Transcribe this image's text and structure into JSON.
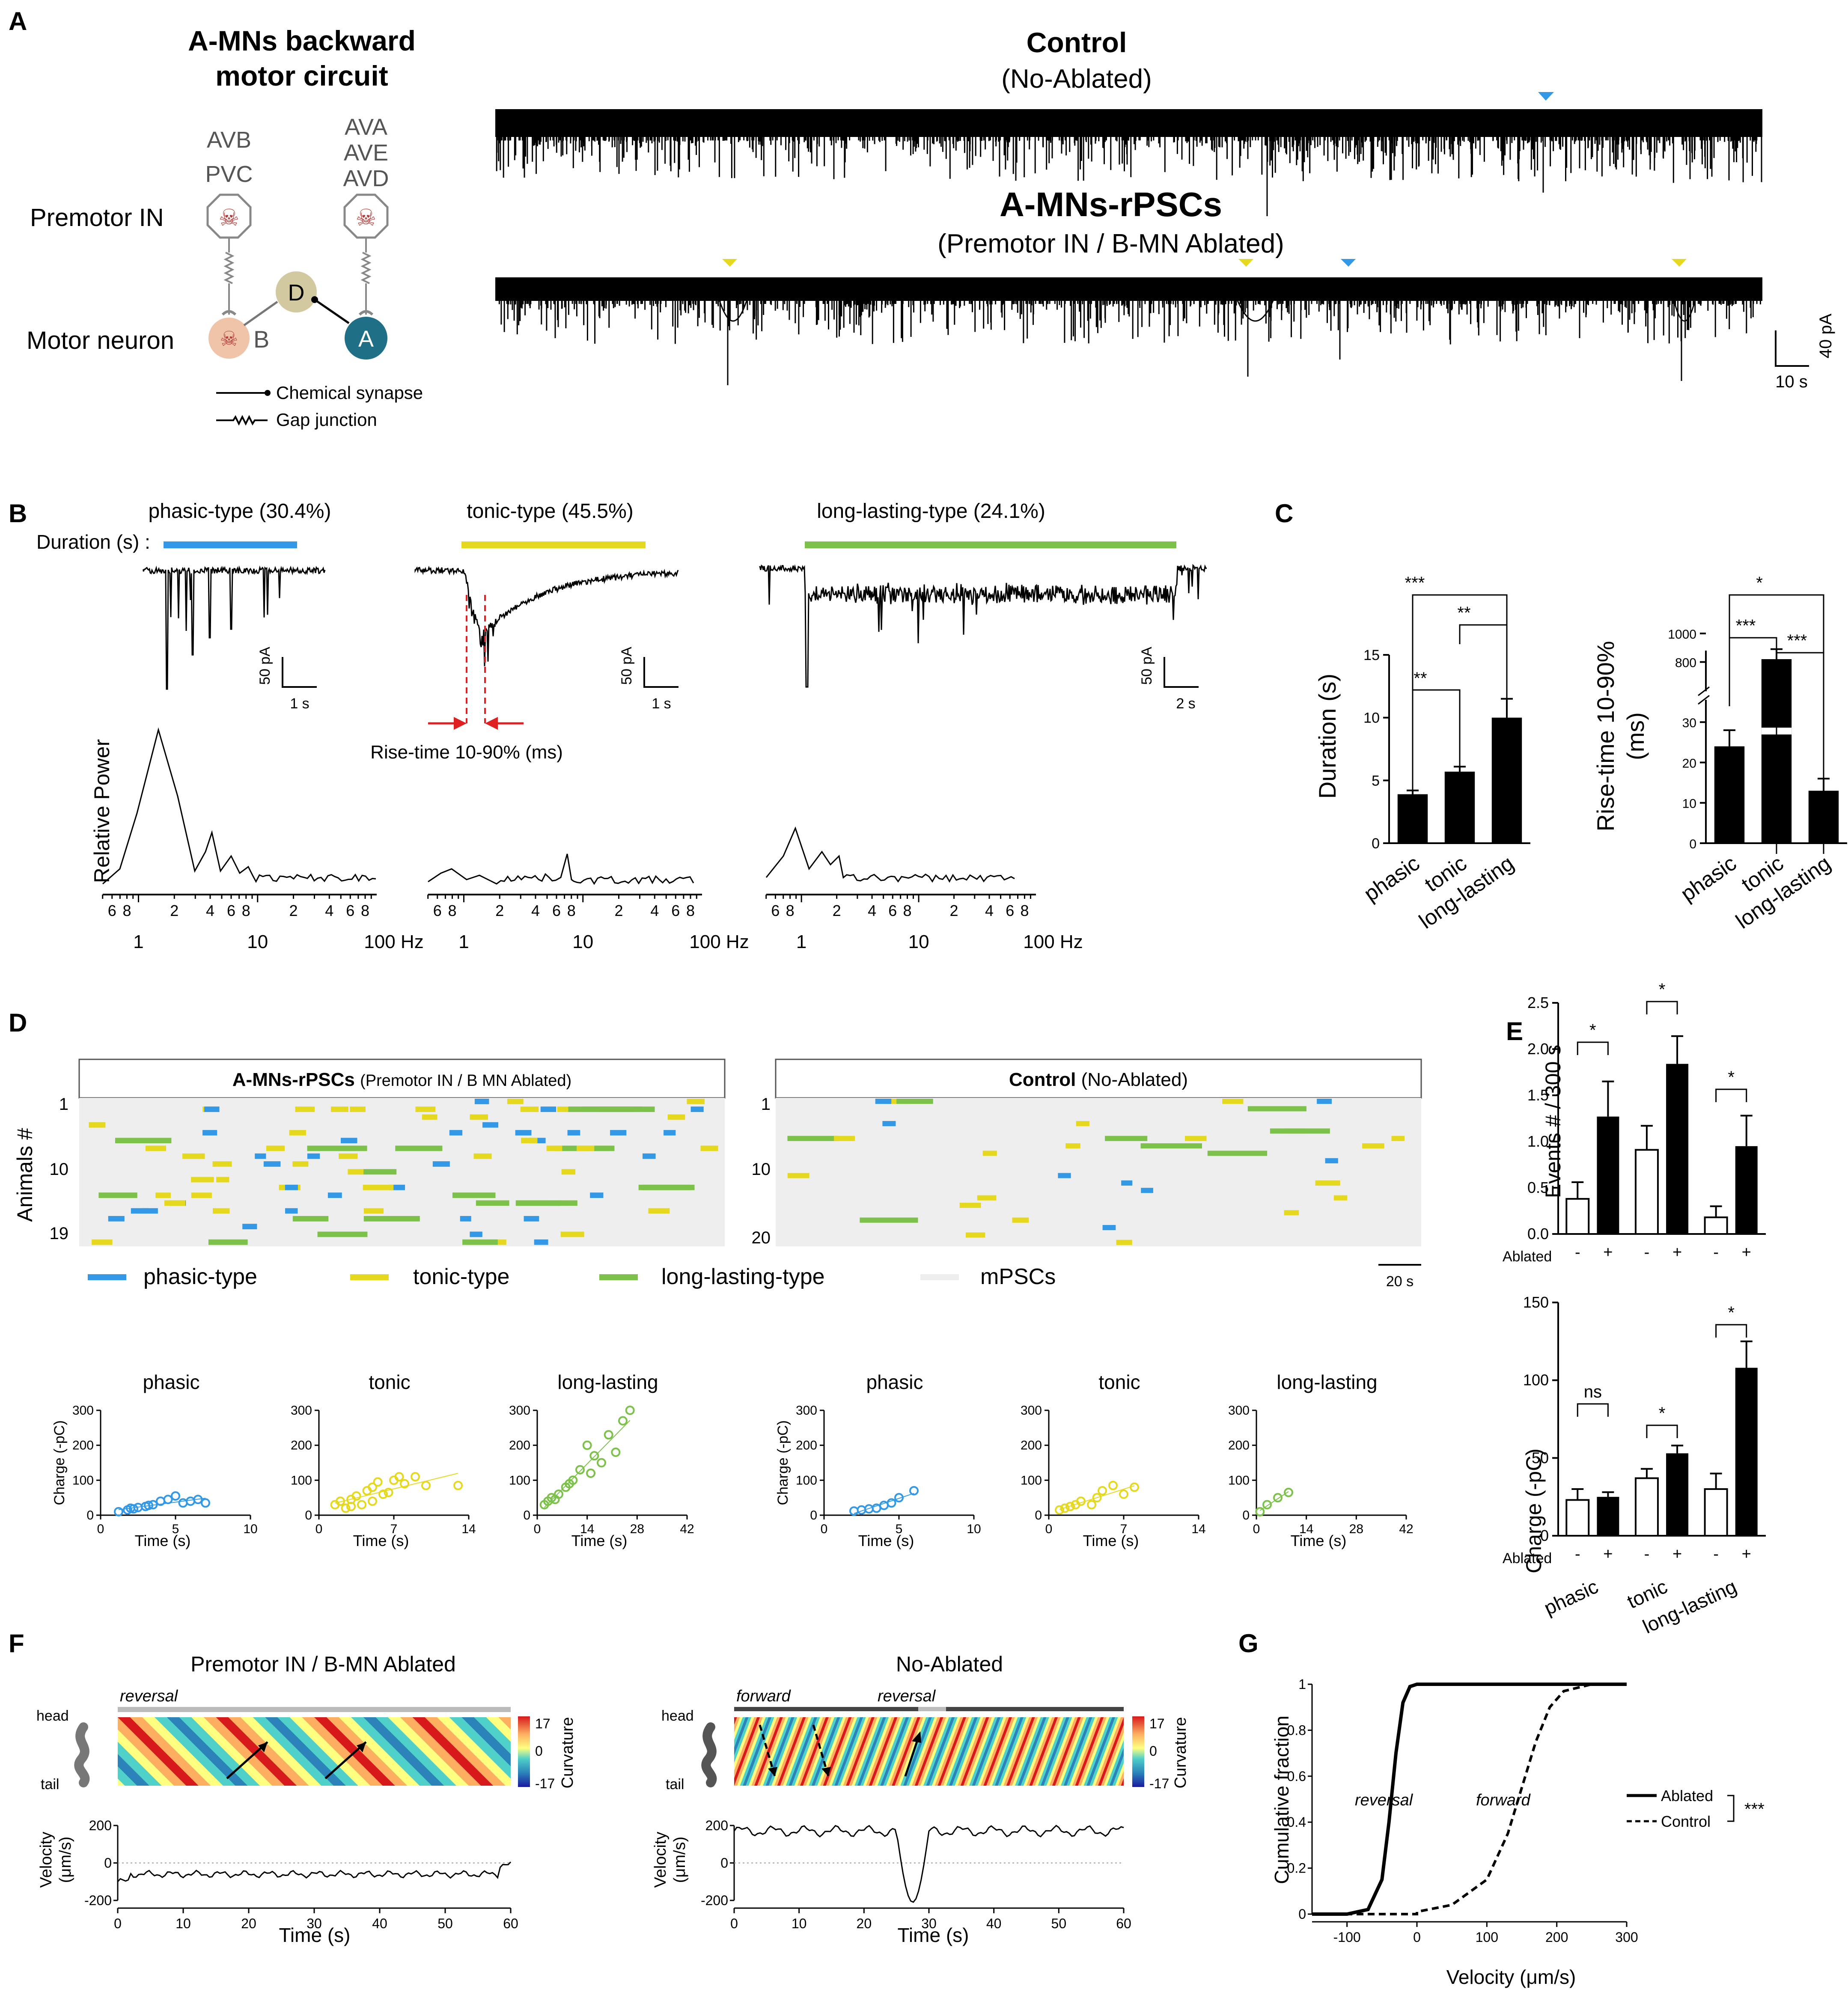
{
  "panels": {
    "A": {
      "letter": "A",
      "circuit_title": [
        "A-MNs backward",
        "motor circuit"
      ],
      "premotor_label": "Premotor IN",
      "motor_label": "Motor neuron",
      "left_neurons": [
        "AVB",
        "PVC"
      ],
      "right_neurons": [
        "AVA",
        "AVE",
        "AVD"
      ],
      "mn_b": "B",
      "mn_d": "D",
      "mn_a": "A",
      "legend_chemical": "Chemical synapse",
      "legend_gap": "Gap junction",
      "control_title": "Control",
      "control_sub": "(No-Ablated)",
      "ablated_title": "A-MNs-rPSCs",
      "ablated_sub": "(Premotor IN / B-MN Ablated)",
      "scale_time": "10 s",
      "scale_amp": "40 pA"
    },
    "B": {
      "letter": "B",
      "duration_label": "Duration (s) :",
      "types": [
        {
          "name": "phasic-type",
          "pct": "(30.4%)",
          "color": "#3399e6",
          "scale_amp": "50 pA",
          "scale_time": "1 s"
        },
        {
          "name": "tonic-type",
          "pct": "(45.5%)",
          "color": "#e6d81f",
          "scale_amp": "50 pA",
          "scale_time": "1 s"
        },
        {
          "name": "long-lasting-type",
          "pct": "(24.1%)",
          "color": "#7cc24a",
          "scale_amp": "50 pA",
          "scale_time": "2 s"
        }
      ],
      "rise_label": "Rise-time 10-90% (ms)",
      "power_ylabel": "Relative Power",
      "freq_ticks_minor": [
        "4",
        "6",
        "8",
        "2",
        "4",
        "6",
        "8",
        "2",
        "4",
        "6",
        "8"
      ],
      "freq_ticks_major": [
        "1",
        "10",
        "100 Hz"
      ]
    },
    "C": {
      "letter": "C",
      "duration_ylabel": "Duration (s)",
      "rise_ylabel": [
        "Rise-time 10-90%",
        "(ms)"
      ],
      "categories": [
        "phasic",
        "tonic",
        "long-lasting"
      ],
      "sig_duration": [
        "***",
        "**",
        "**"
      ],
      "sig_rise": [
        "*",
        "***",
        "***"
      ]
    },
    "D": {
      "letter": "D",
      "left_title": "A-MNs-rPSCs",
      "left_sub": "(Premotor IN / B MN Ablated)",
      "right_title": "Control",
      "right_sub": "(No-Ablated)",
      "ylabel": "Animals #",
      "left_yticks": [
        "1",
        "10",
        "19"
      ],
      "right_yticks": [
        "1",
        "10",
        "20"
      ],
      "scale": "20 s",
      "legend": [
        {
          "label": "phasic-type",
          "color": "#3399e6"
        },
        {
          "label": "tonic-type",
          "color": "#e6d81f"
        },
        {
          "label": "long-lasting-type",
          "color": "#7cc24a"
        },
        {
          "label": "mPSCs",
          "color": "#eeeeee"
        }
      ],
      "scatter_ylabel": "Charge (-pC)",
      "scatter_xlabel": "Time (s)",
      "scatter_yticks": [
        "0",
        "100",
        "200",
        "300"
      ],
      "scatters": [
        {
          "title": "phasic",
          "xticks": [
            "0",
            "5",
            "10"
          ],
          "color": "#3399e6"
        },
        {
          "title": "tonic",
          "xticks": [
            "0",
            "7",
            "14"
          ],
          "color": "#e6d81f"
        },
        {
          "title": "long-lasting",
          "xticks": [
            "0",
            "14",
            "28",
            "42"
          ],
          "color": "#7cc24a"
        },
        {
          "title": "phasic",
          "xticks": [
            "0",
            "5",
            "10"
          ],
          "color": "#3399e6"
        },
        {
          "title": "tonic",
          "xticks": [
            "0",
            "7",
            "14"
          ],
          "color": "#e6d81f"
        },
        {
          "title": "long-lasting",
          "xticks": [
            "0",
            "14",
            "28",
            "42"
          ],
          "color": "#7cc24a"
        }
      ]
    },
    "E": {
      "letter": "E",
      "events_ylabel": "Events # / 300 s",
      "events_yticks": [
        "0.0",
        "0.5",
        "1.0",
        "1.5",
        "2.0",
        "2.5"
      ],
      "charge_ylabel": "Charge (-pC)",
      "charge_yticks": [
        "0",
        "50",
        "100",
        "150"
      ],
      "ablated_label": "Ablated",
      "minus": "-",
      "plus": "+",
      "categories": [
        "phasic",
        "tonic",
        "long-lasting"
      ],
      "sig_events": [
        "*",
        "*",
        "*"
      ],
      "sig_charge": [
        "ns",
        "*",
        "*"
      ]
    },
    "F": {
      "letter": "F",
      "left_title": "Premotor IN / B-MN Ablated",
      "right_title": "No-Ablated",
      "left_state": "reversal",
      "right_state_1": "forward",
      "right_state_2": "reversal",
      "head": "head",
      "tail": "tail",
      "cbar_ticks": [
        "17",
        "0",
        "-17"
      ],
      "cbar_label": "Curvature",
      "vel_ylabel": [
        "Velocity",
        "(μm/s)"
      ],
      "vel_yticks_left": [
        "200",
        "0",
        "-200"
      ],
      "vel_yticks_right": [
        "200",
        "0",
        "-200"
      ],
      "time_ticks": [
        "0",
        "10",
        "20",
        "30",
        "40",
        "50",
        "60"
      ],
      "xlabel": "Time (s)"
    },
    "G": {
      "letter": "G",
      "ylabel": "Cumulative fraction",
      "xlabel": "Velocity (μm/s)",
      "yticks": [
        "0",
        "0.2",
        "0.4",
        "0.6",
        "0.8",
        "1"
      ],
      "xticks": [
        "-100",
        "0",
        "100",
        "200",
        "300"
      ],
      "label_reversal": "reversal",
      "label_forward": "forward",
      "legend_ablated": "Ablated",
      "legend_control": "Control",
      "sig": "***"
    }
  },
  "chart_data": [
    {
      "type": "bar",
      "categories": [
        "phasic",
        "tonic",
        "long-lasting"
      ],
      "values": [
        3.9,
        5.7,
        10.0
      ],
      "errors": [
        0.3,
        0.4,
        1.5
      ],
      "ylabel": "Duration (s)",
      "ylim": [
        0,
        15
      ],
      "yticks": [
        0,
        5,
        10,
        15
      ]
    },
    {
      "type": "bar",
      "categories": [
        "phasic",
        "tonic",
        "long-lasting"
      ],
      "values": [
        24,
        820,
        13
      ],
      "errors": [
        4,
        70,
        3
      ],
      "ylabel": "Rise-time 10-90% (ms)",
      "yticks": [
        0,
        10,
        20,
        30,
        800,
        1000
      ],
      "axis_break": [
        35,
        700
      ]
    },
    {
      "type": "bar",
      "categories": [
        "phasic",
        "tonic",
        "long-lasting"
      ],
      "series": [
        {
          "name": "-",
          "values": [
            0.38,
            0.91,
            0.18
          ],
          "errors": [
            0.18,
            0.26,
            0.12
          ]
        },
        {
          "name": "+",
          "values": [
            1.27,
            1.84,
            0.95
          ],
          "errors": [
            0.38,
            0.3,
            0.33
          ]
        }
      ],
      "ylabel": "Events # / 300 s",
      "ylim": [
        0,
        2.5
      ]
    },
    {
      "type": "bar",
      "categories": [
        "phasic",
        "tonic",
        "long-lasting"
      ],
      "series": [
        {
          "name": "-",
          "values": [
            23,
            37,
            30
          ],
          "errors": [
            7,
            6,
            10
          ]
        },
        {
          "name": "+",
          "values": [
            25,
            53,
            108
          ],
          "errors": [
            3,
            5,
            17
          ]
        }
      ],
      "ylabel": "Charge (-pC)",
      "ylim": [
        0,
        150
      ]
    },
    {
      "type": "line",
      "xlabel": "Velocity (μm/s)",
      "ylabel": "Cumulative fraction",
      "xlim": [
        -150,
        300
      ],
      "ylim": [
        0,
        1
      ],
      "series": [
        {
          "name": "Ablated",
          "x": [
            -150,
            -100,
            -70,
            -50,
            -40,
            -30,
            -20,
            -10,
            0,
            50,
            100,
            200,
            300
          ],
          "y": [
            0,
            0,
            0.02,
            0.15,
            0.4,
            0.7,
            0.92,
            0.99,
            1,
            1,
            1,
            1,
            1
          ]
        },
        {
          "name": "Control",
          "x": [
            -150,
            0,
            0,
            50,
            100,
            130,
            150,
            170,
            190,
            210,
            250,
            300
          ],
          "y": [
            0,
            0,
            0.01,
            0.04,
            0.15,
            0.35,
            0.55,
            0.75,
            0.9,
            0.97,
            1,
            1
          ]
        }
      ]
    }
  ]
}
